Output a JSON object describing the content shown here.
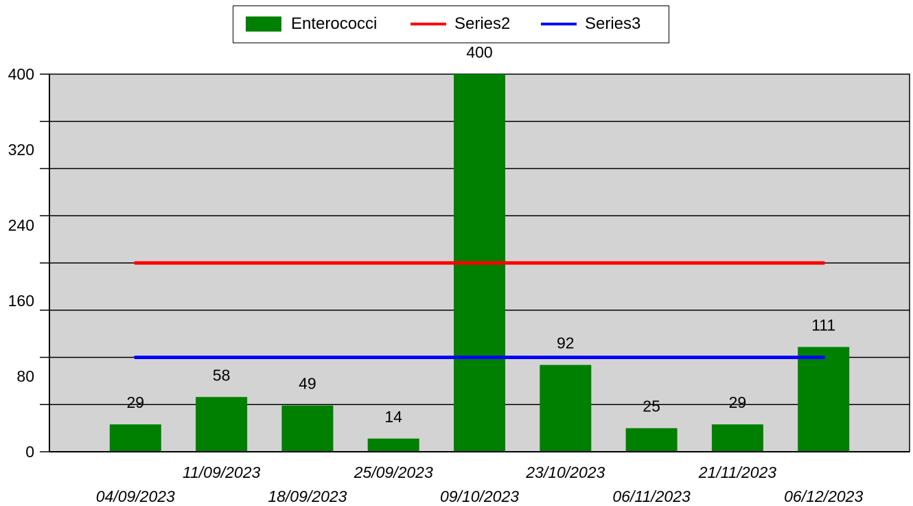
{
  "chart_data": {
    "type": "bar",
    "categories": [
      "04/09/2023",
      "11/09/2023",
      "18/09/2023",
      "25/09/2023",
      "09/10/2023",
      "23/10/2023",
      "06/11/2023",
      "21/11/2023",
      "06/12/2023"
    ],
    "series": [
      {
        "name": "Enterococci",
        "kind": "bar",
        "color": "#008000",
        "values": [
          29,
          58,
          49,
          14,
          400,
          92,
          25,
          29,
          111
        ]
      },
      {
        "name": "Series2",
        "kind": "line",
        "color": "#ff0000",
        "values": [
          200,
          200,
          200,
          200,
          200,
          200,
          200,
          200,
          200
        ]
      },
      {
        "name": "Series3",
        "kind": "line",
        "color": "#0000ff",
        "values": [
          100,
          100,
          100,
          100,
          100,
          100,
          100,
          100,
          100
        ]
      }
    ],
    "data_labels": [
      "29",
      "58",
      "49",
      "14",
      "400",
      "92",
      "25",
      "29",
      "111"
    ],
    "y_ticks": [
      "0",
      "80",
      "160",
      "240",
      "320",
      "400"
    ],
    "ylim": [
      0,
      400
    ],
    "grid": true,
    "grid_step": 50,
    "plot_background": "#d3d3d3",
    "legend_position": "top-center",
    "title": "",
    "xlabel": "",
    "ylabel": ""
  }
}
